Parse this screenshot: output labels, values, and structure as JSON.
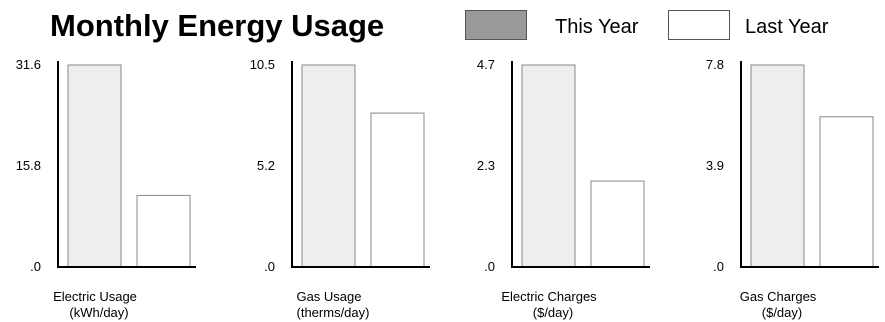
{
  "title": "Monthly Energy Usage",
  "legend": [
    {
      "label": "This Year",
      "color": "#999999"
    },
    {
      "label": "Last Year",
      "color": "#ffffff"
    }
  ],
  "bar_colors": {
    "this_year": "#eeeeee",
    "last_year": "#ffffff",
    "bar_stroke": "#888888",
    "axis": "#000000"
  },
  "chart_data": [
    {
      "type": "bar",
      "categories": [
        "This Year",
        "Last Year"
      ],
      "values": [
        31.6,
        11.2
      ],
      "xlabel": [
        "Electric Usage",
        "(kWh/day)"
      ],
      "ylim": [
        0,
        31.6
      ],
      "yticks": [
        ".0",
        "15.8",
        "31.6"
      ]
    },
    {
      "type": "bar",
      "categories": [
        "This Year",
        "Last Year"
      ],
      "values": [
        10.5,
        8.0
      ],
      "xlabel": [
        "Gas Usage",
        "(therms/day)"
      ],
      "ylim": [
        0,
        10.5
      ],
      "yticks": [
        ".0",
        "5.2",
        "10.5"
      ]
    },
    {
      "type": "bar",
      "categories": [
        "This Year",
        "Last Year"
      ],
      "values": [
        4.7,
        2.0
      ],
      "xlabel": [
        "Electric Charges",
        "($/day)"
      ],
      "ylim": [
        0,
        4.7
      ],
      "yticks": [
        ".0",
        "2.3",
        "4.7"
      ]
    },
    {
      "type": "bar",
      "categories": [
        "This Year",
        "Last Year"
      ],
      "values": [
        7.8,
        5.8
      ],
      "xlabel": [
        "Gas Charges",
        "($/day)"
      ],
      "ylim": [
        0,
        7.8
      ],
      "yticks": [
        ".0",
        "3.9",
        "7.8"
      ]
    }
  ]
}
